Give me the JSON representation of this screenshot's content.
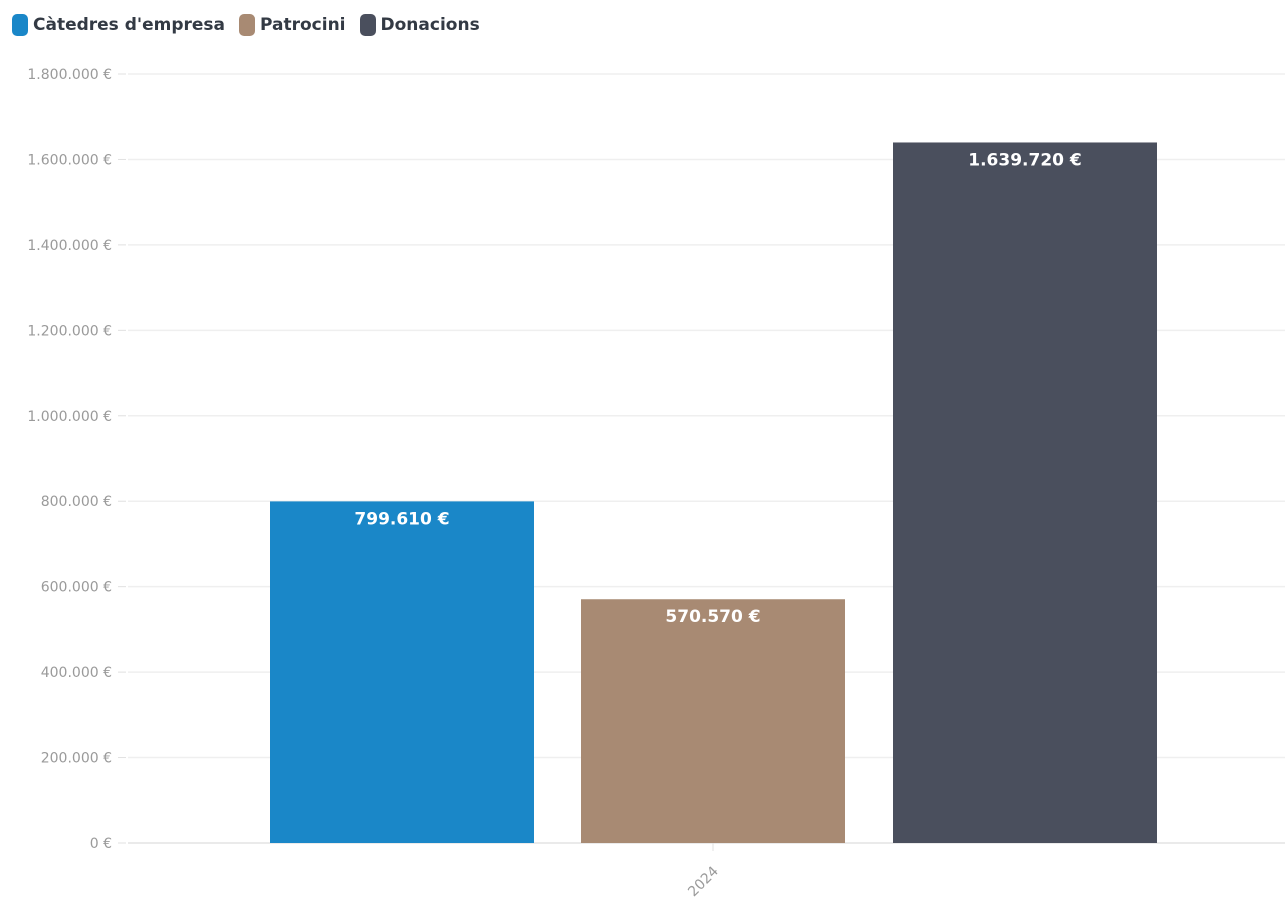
{
  "chart_data": {
    "type": "bar",
    "categories": [
      "2024"
    ],
    "series": [
      {
        "name": "Càtedres d'empresa",
        "values": [
          799610
        ],
        "color": "#1a87c8",
        "label": "799.610 €"
      },
      {
        "name": "Patrocini",
        "values": [
          570570
        ],
        "color": "#a88a73",
        "label": "570.570 €"
      },
      {
        "name": "Donacions",
        "values": [
          1639720
        ],
        "color": "#4a4f5d",
        "label": "1.639.720 €"
      }
    ],
    "ylim": [
      0,
      1800000
    ],
    "yticks": [
      0,
      200000,
      400000,
      600000,
      800000,
      1000000,
      1200000,
      1400000,
      1600000,
      1800000
    ],
    "ytick_labels": [
      "0 €",
      "200.000 €",
      "400.000 €",
      "600.000 €",
      "800.000 €",
      "1.000.000 €",
      "1.200.000 €",
      "1.400.000 €",
      "1.600.000 €",
      "1.800.000 €"
    ],
    "xtick_labels": [
      "2024"
    ],
    "legend_position": "top-left",
    "grid": true,
    "title": "",
    "xlabel": "",
    "ylabel": ""
  }
}
